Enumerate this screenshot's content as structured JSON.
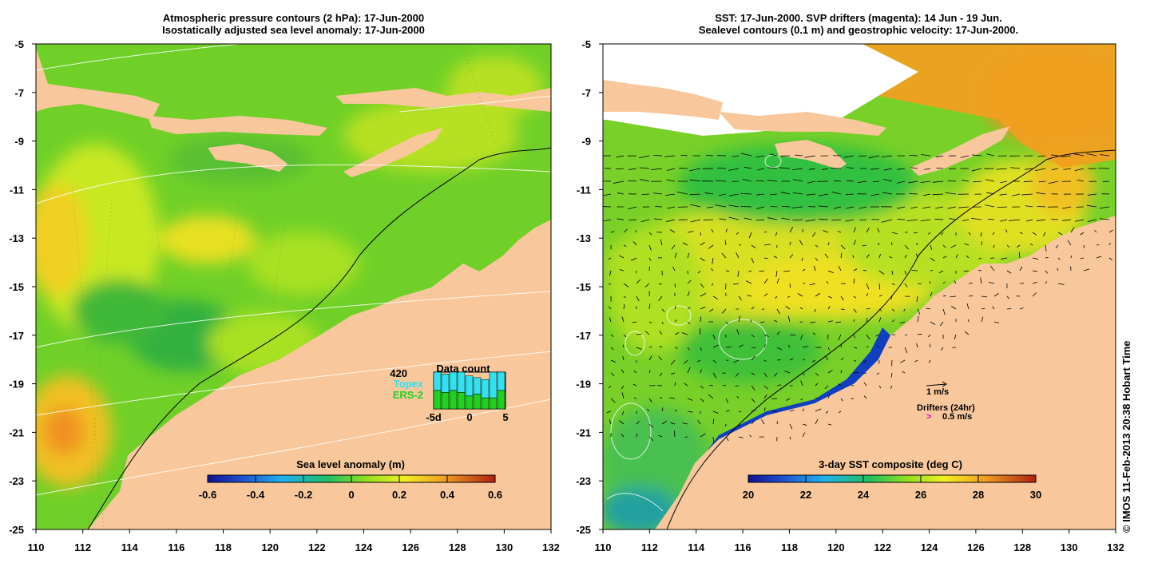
{
  "left_panel": {
    "title_line1": "Atmospheric pressure contours (2 hPa): 17-Jun-2000",
    "title_line2": "Isostatically adjusted sea level anomaly: 17-Jun-2000",
    "x_ticks": [
      "110",
      "112",
      "114",
      "116",
      "118",
      "120",
      "122",
      "124",
      "126",
      "128",
      "130",
      "132"
    ],
    "y_ticks": [
      "-5",
      "-7",
      "-9",
      "-11",
      "-13",
      "-15",
      "-17",
      "-19",
      "-21",
      "-23",
      "-25"
    ],
    "colorbar": {
      "label": "Sea level anomaly (m)",
      "ticks": [
        "-0.6",
        "-0.4",
        "-0.2",
        "0",
        "0.2",
        "0.4",
        "0.6"
      ],
      "range": [
        -0.6,
        0.6
      ]
    },
    "data_count": {
      "title": "Data count",
      "max_label": "420",
      "series1": "Topex",
      "series2": "ERS-2",
      "series1_color": "#33e0f0",
      "series2_color": "#22d022",
      "x_ticks": [
        "-5d",
        "0",
        "5"
      ],
      "topex_values": [
        0.55,
        0.5,
        0.5,
        0.65,
        0.55,
        0.45,
        0.5,
        0.75,
        0.6
      ],
      "ers2_values": [
        0.5,
        0.45,
        0.5,
        0.45,
        0.35,
        0.4,
        0.3,
        0.3,
        0.5
      ]
    }
  },
  "right_panel": {
    "title_line1": "SST: 17-Jun-2000. SVP drifters (magenta): 14 Jun - 19 Jun.",
    "title_line2": "Sealevel contours (0.1 m) and geostrophic velocity: 17-Jun-2000.",
    "x_ticks": [
      "110",
      "112",
      "114",
      "116",
      "118",
      "120",
      "122",
      "124",
      "126",
      "128",
      "130",
      "132"
    ],
    "y_ticks": [
      "-5",
      "-7",
      "-9",
      "-11",
      "-13",
      "-15",
      "-17",
      "-19",
      "-21",
      "-23",
      "-25"
    ],
    "colorbar": {
      "label": "3-day SST composite (deg C)",
      "ticks": [
        "20",
        "22",
        "24",
        "26",
        "28",
        "30"
      ],
      "range": [
        20,
        30
      ]
    },
    "velocity_legend": {
      "label": "1 m/s"
    },
    "drifter_legend": {
      "label": "Drifters (24hr)",
      "speed": "0.5 m/s",
      "marker": ">",
      "marker_color": "#e000e0"
    }
  },
  "credit": "© IMOS 11-Feb-2013 20:38 Hobart Time",
  "colors": {
    "land": "#f8c89c",
    "no_data": "#ffffff"
  }
}
